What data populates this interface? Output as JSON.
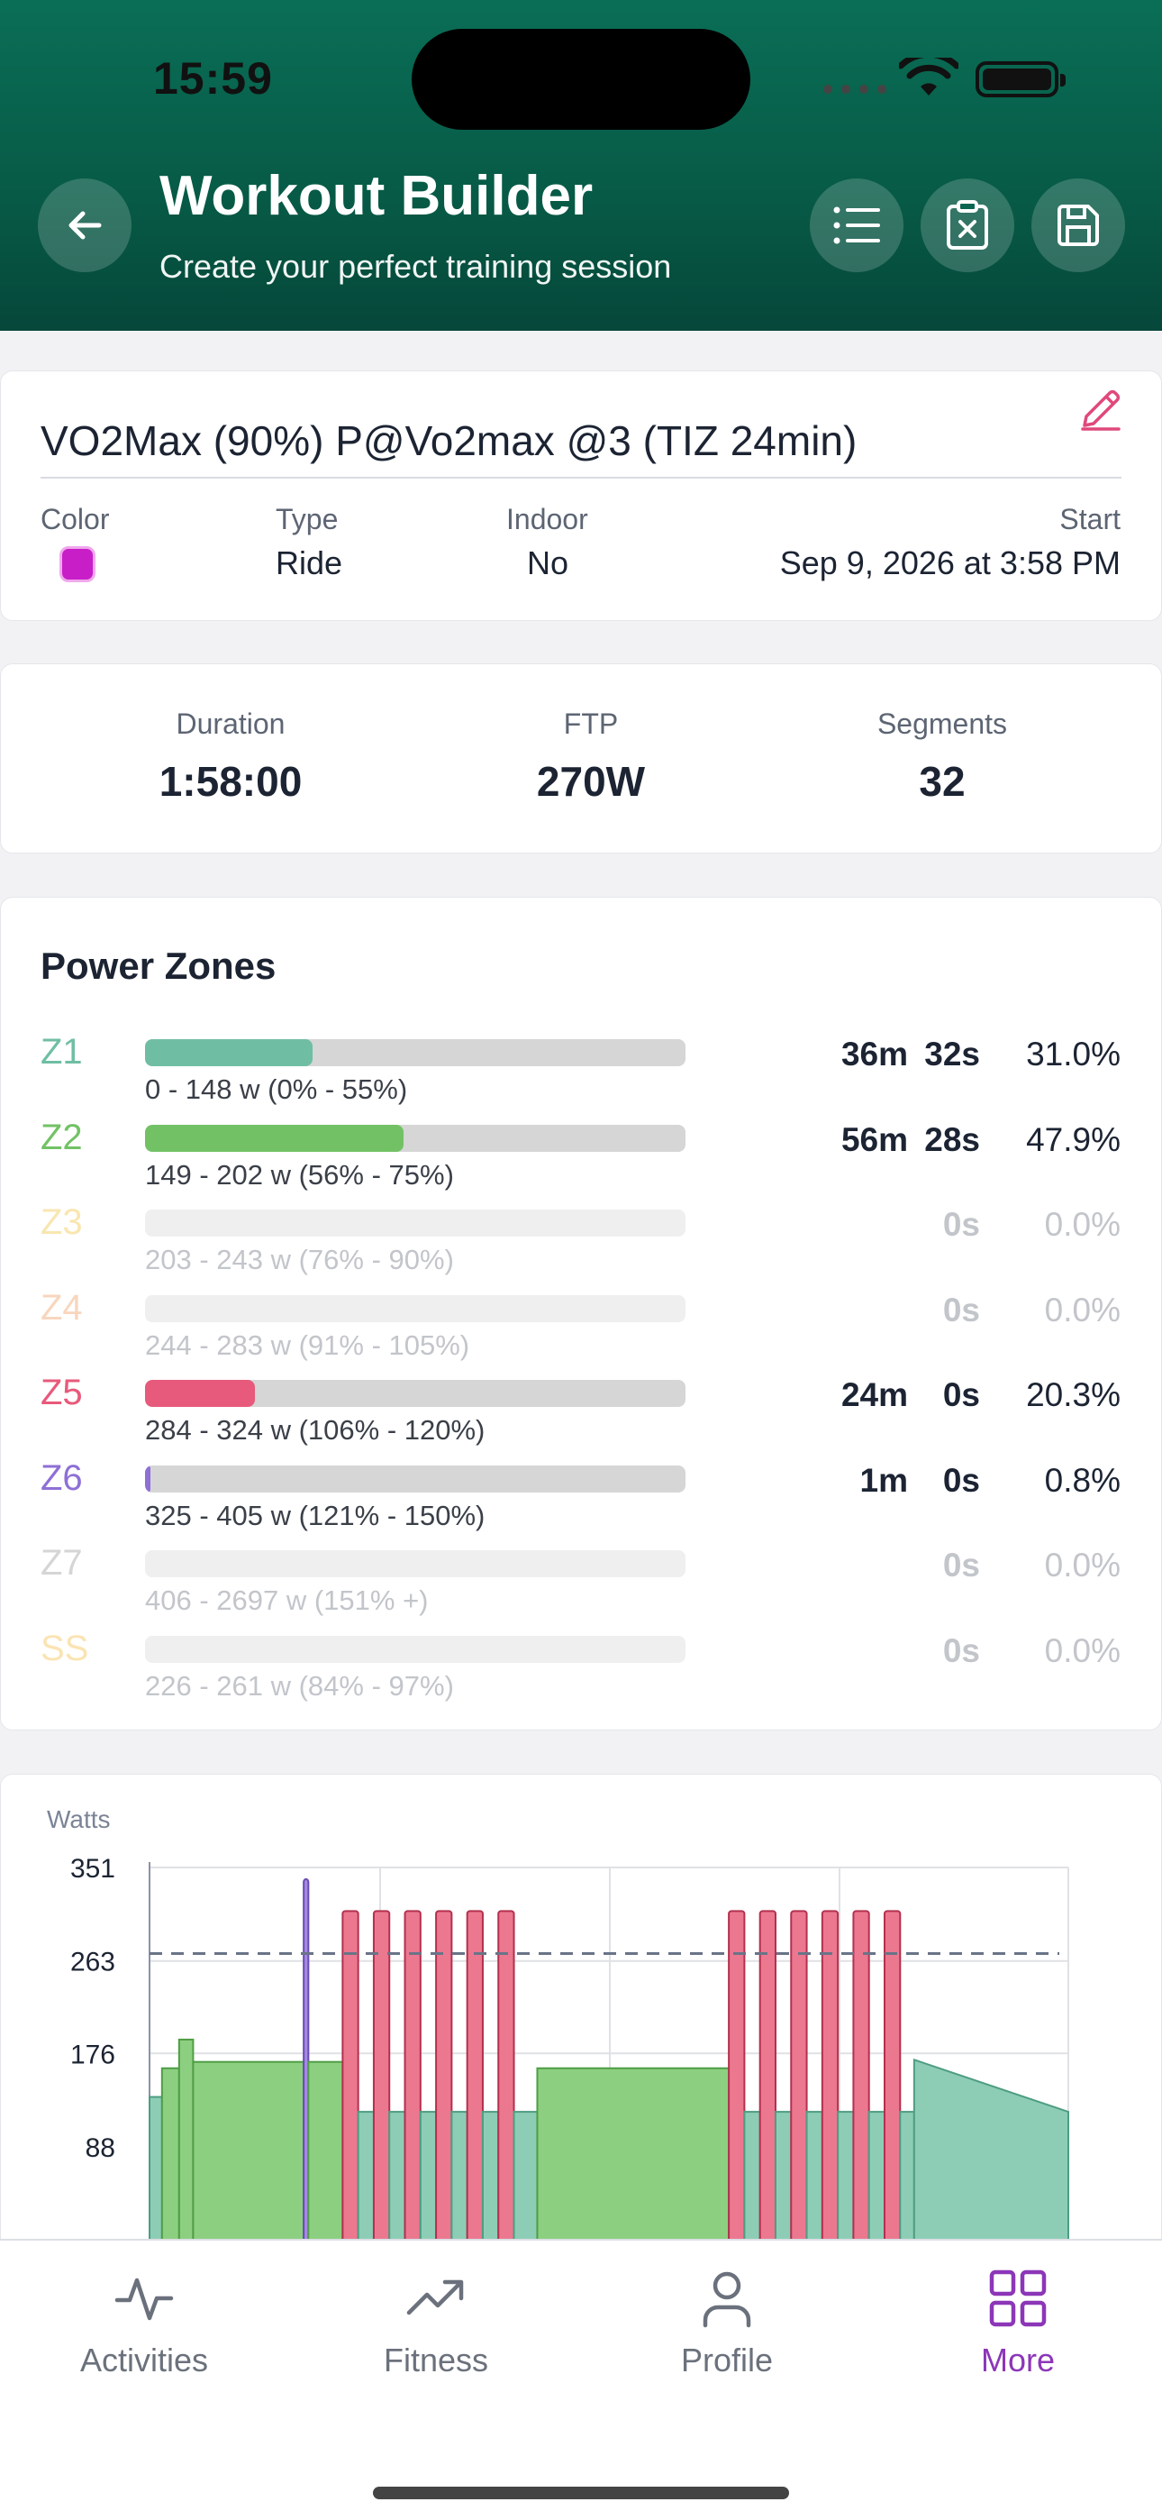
{
  "status": {
    "time": "15:59"
  },
  "header": {
    "title": "Workout Builder",
    "subtitle": "Create your perfect training session"
  },
  "workout": {
    "title": "VO2Max (90%) P@Vo2max @3 (TIZ 24min)",
    "color_label": "Color",
    "color_value": "#c81ec8",
    "type_label": "Type",
    "type_value": "Ride",
    "indoor_label": "Indoor",
    "indoor_value": "No",
    "start_label": "Start",
    "start_value": "Sep 9, 2026 at 3:58 PM"
  },
  "stats": {
    "duration_label": "Duration",
    "duration_value": "1:58:00",
    "ftp_label": "FTP",
    "ftp_value": "270W",
    "segments_label": "Segments",
    "segments_value": "32"
  },
  "power_zones": {
    "title": "Power Zones",
    "zones": [
      {
        "name": "Z1",
        "range": "0 - 148 w (0% - 55%)",
        "min": "36m",
        "sec": "32s",
        "pct": "31.0%",
        "fraction": 0.31,
        "color": "#6fbea3",
        "active": true
      },
      {
        "name": "Z2",
        "range": "149 - 202 w (56% - 75%)",
        "min": "56m",
        "sec": "28s",
        "pct": "47.9%",
        "fraction": 0.479,
        "color": "#72c265",
        "active": true
      },
      {
        "name": "Z3",
        "range": "203 - 243 w (76% - 90%)",
        "min": "",
        "sec": "0s",
        "pct": "0.0%",
        "fraction": 0,
        "color": "#f9e6b0",
        "active": false
      },
      {
        "name": "Z4",
        "range": "244 - 283 w (91% - 105%)",
        "min": "",
        "sec": "0s",
        "pct": "0.0%",
        "fraction": 0,
        "color": "#f8d6bd",
        "active": false
      },
      {
        "name": "Z5",
        "range": "284 - 324 w (106% - 120%)",
        "min": "24m",
        "sec": "0s",
        "pct": "20.3%",
        "fraction": 0.203,
        "color": "#e75a7b",
        "active": true
      },
      {
        "name": "Z6",
        "range": "325 - 405 w (121% - 150%)",
        "min": "1m",
        "sec": "0s",
        "pct": "0.8%",
        "fraction": 0.008,
        "color": "#8e6fd6",
        "active": true
      },
      {
        "name": "Z7",
        "range": "406 - 2697 w (151% +)",
        "min": "",
        "sec": "0s",
        "pct": "0.0%",
        "fraction": 0,
        "color": "#d5d5d5",
        "active": false
      },
      {
        "name": "SS",
        "range": "226 - 261 w (84% - 97%)",
        "min": "",
        "sec": "0s",
        "pct": "0.0%",
        "fraction": 0,
        "color": "#fbe4b3",
        "active": false
      }
    ]
  },
  "chart_data": {
    "type": "bar",
    "ylabel": "Watts",
    "yticks": [
      351,
      263,
      176,
      88
    ],
    "ylim": [
      0,
      351
    ],
    "xlim": [
      0,
      118
    ],
    "ftp_line": 270,
    "grid": true,
    "segments": [
      {
        "start": 0,
        "end": 1.6,
        "power": 135,
        "zone": "Z1"
      },
      {
        "start": 1.6,
        "end": 3.8,
        "power": 162,
        "zone": "Z2"
      },
      {
        "start": 3.8,
        "end": 5.6,
        "power": 189,
        "zone": "Z2"
      },
      {
        "start": 5.6,
        "end": 19.8,
        "power": 168,
        "zone": "Z2"
      },
      {
        "start": 19.8,
        "end": 20.4,
        "power": 340,
        "zone": "Z6"
      },
      {
        "start": 20.4,
        "end": 24.8,
        "power": 168,
        "zone": "Z2"
      },
      {
        "start": 24.8,
        "end": 26.8,
        "power": 310,
        "zone": "Z5"
      },
      {
        "start": 26.8,
        "end": 28.8,
        "power": 121,
        "zone": "Z1"
      },
      {
        "start": 28.8,
        "end": 30.8,
        "power": 310,
        "zone": "Z5"
      },
      {
        "start": 30.8,
        "end": 32.8,
        "power": 121,
        "zone": "Z1"
      },
      {
        "start": 32.8,
        "end": 34.8,
        "power": 310,
        "zone": "Z5"
      },
      {
        "start": 34.8,
        "end": 36.8,
        "power": 121,
        "zone": "Z1"
      },
      {
        "start": 36.8,
        "end": 38.8,
        "power": 310,
        "zone": "Z5"
      },
      {
        "start": 38.8,
        "end": 40.8,
        "power": 121,
        "zone": "Z1"
      },
      {
        "start": 40.8,
        "end": 42.8,
        "power": 310,
        "zone": "Z5"
      },
      {
        "start": 42.8,
        "end": 44.8,
        "power": 121,
        "zone": "Z1"
      },
      {
        "start": 44.8,
        "end": 46.8,
        "power": 310,
        "zone": "Z5"
      },
      {
        "start": 46.8,
        "end": 49.8,
        "power": 121,
        "zone": "Z1"
      },
      {
        "start": 49.8,
        "end": 74.4,
        "power": 162,
        "zone": "Z2"
      },
      {
        "start": 74.4,
        "end": 76.4,
        "power": 310,
        "zone": "Z5"
      },
      {
        "start": 76.4,
        "end": 78.4,
        "power": 121,
        "zone": "Z1"
      },
      {
        "start": 78.4,
        "end": 80.4,
        "power": 310,
        "zone": "Z5"
      },
      {
        "start": 80.4,
        "end": 82.4,
        "power": 121,
        "zone": "Z1"
      },
      {
        "start": 82.4,
        "end": 84.4,
        "power": 310,
        "zone": "Z5"
      },
      {
        "start": 84.4,
        "end": 86.4,
        "power": 121,
        "zone": "Z1"
      },
      {
        "start": 86.4,
        "end": 88.4,
        "power": 310,
        "zone": "Z5"
      },
      {
        "start": 88.4,
        "end": 90.4,
        "power": 121,
        "zone": "Z1"
      },
      {
        "start": 90.4,
        "end": 92.4,
        "power": 310,
        "zone": "Z5"
      },
      {
        "start": 92.4,
        "end": 94.4,
        "power": 121,
        "zone": "Z1"
      },
      {
        "start": 94.4,
        "end": 96.4,
        "power": 310,
        "zone": "Z5"
      },
      {
        "start": 96.4,
        "end": 98.2,
        "power": 121,
        "zone": "Z1"
      }
    ],
    "ramp": {
      "start": 98.2,
      "end": 118,
      "power_start": 170,
      "power_end": 121,
      "zone": "Z1"
    }
  },
  "tabs": [
    {
      "label": "Activities",
      "icon": "activity-icon",
      "active": false
    },
    {
      "label": "Fitness",
      "icon": "trending-up-icon",
      "active": false
    },
    {
      "label": "Profile",
      "icon": "user-icon",
      "active": false
    },
    {
      "label": "More",
      "icon": "grid-icon",
      "active": true
    }
  ]
}
